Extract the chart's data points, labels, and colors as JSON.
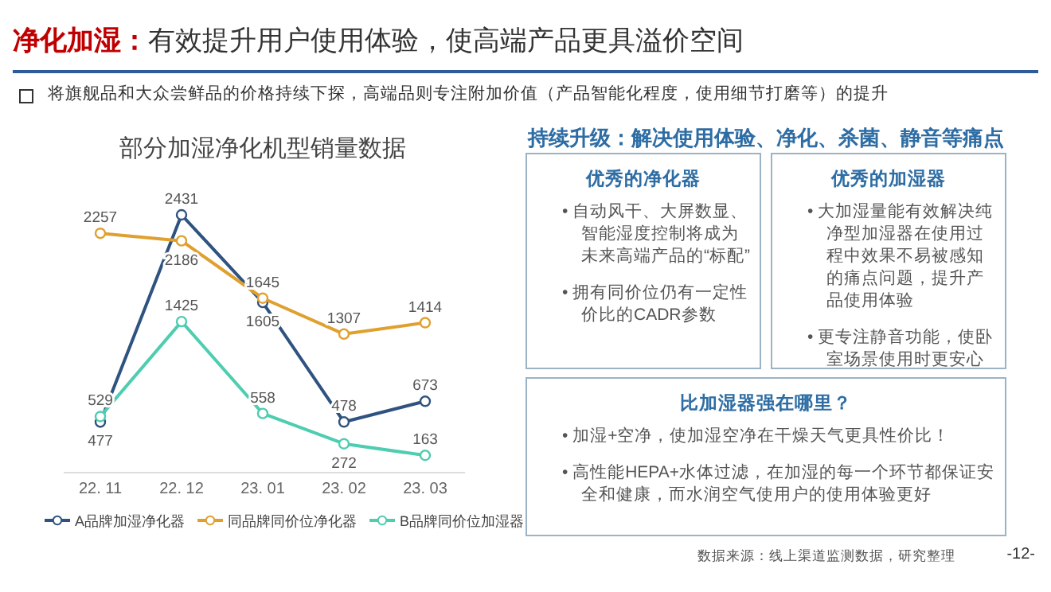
{
  "chart_data": [
    {
      "type": "other",
      "title": "净化加湿：有效提升用户使用体验，使高端产品更具溢价空间",
      "subtitle": "将旗舰品和大众尝鲜品的价格持续下探，高端品则专注附加价值（产品智能化程度，使用细节打磨等）的提升",
      "annotations": [
        "持续升级：解决使用体验、净化、杀菌、静音等痛点",
        "优秀的净化器",
        "• 自动风干、大屏数显、智能湿度控制将成为未来高端产品的“标配”",
        "• 拥有同价位仍有一定性价比的CADR参数",
        "优秀的加湿器",
        "• 大加湿量能有效解决纯净型加湿器在使用过程中效果不易被感知的痛点问题，提升产品使用体验",
        "• 更专注静音功能，使卧室场景使用时更安心",
        "比加湿器强在哪里？",
        "• 加湿+空净，使加湿空净在干燥天气更具性价比！",
        "• 高性能HEPA+水体过滤，在加湿的每一个环节都保证安全和健康，而水润空气使用户的使用体验更好",
        "数据来源：线上渠道监测数据，研究整理",
        "-12-"
      ]
    },
    {
      "type": "line",
      "title": "部分加湿净化机型销量数据",
      "categories": [
        "22. 11",
        "22. 12",
        "23. 01",
        "23. 02",
        "23. 03"
      ],
      "series": [
        {
          "name": "A品牌加湿净化器",
          "color": "#2f5380",
          "values": [
            477,
            2431,
            1605,
            478,
            673
          ]
        },
        {
          "name": "同品牌同价位净化器",
          "color": "#e0a030",
          "values": [
            2257,
            2186,
            1645,
            1307,
            1414
          ]
        },
        {
          "name": "B品牌同价位加湿器",
          "color": "#4ecdb0",
          "values": [
            529,
            1425,
            558,
            272,
            163
          ]
        }
      ],
      "data_labels": true,
      "marker": "circle",
      "legend": "bottom"
    }
  ]
}
